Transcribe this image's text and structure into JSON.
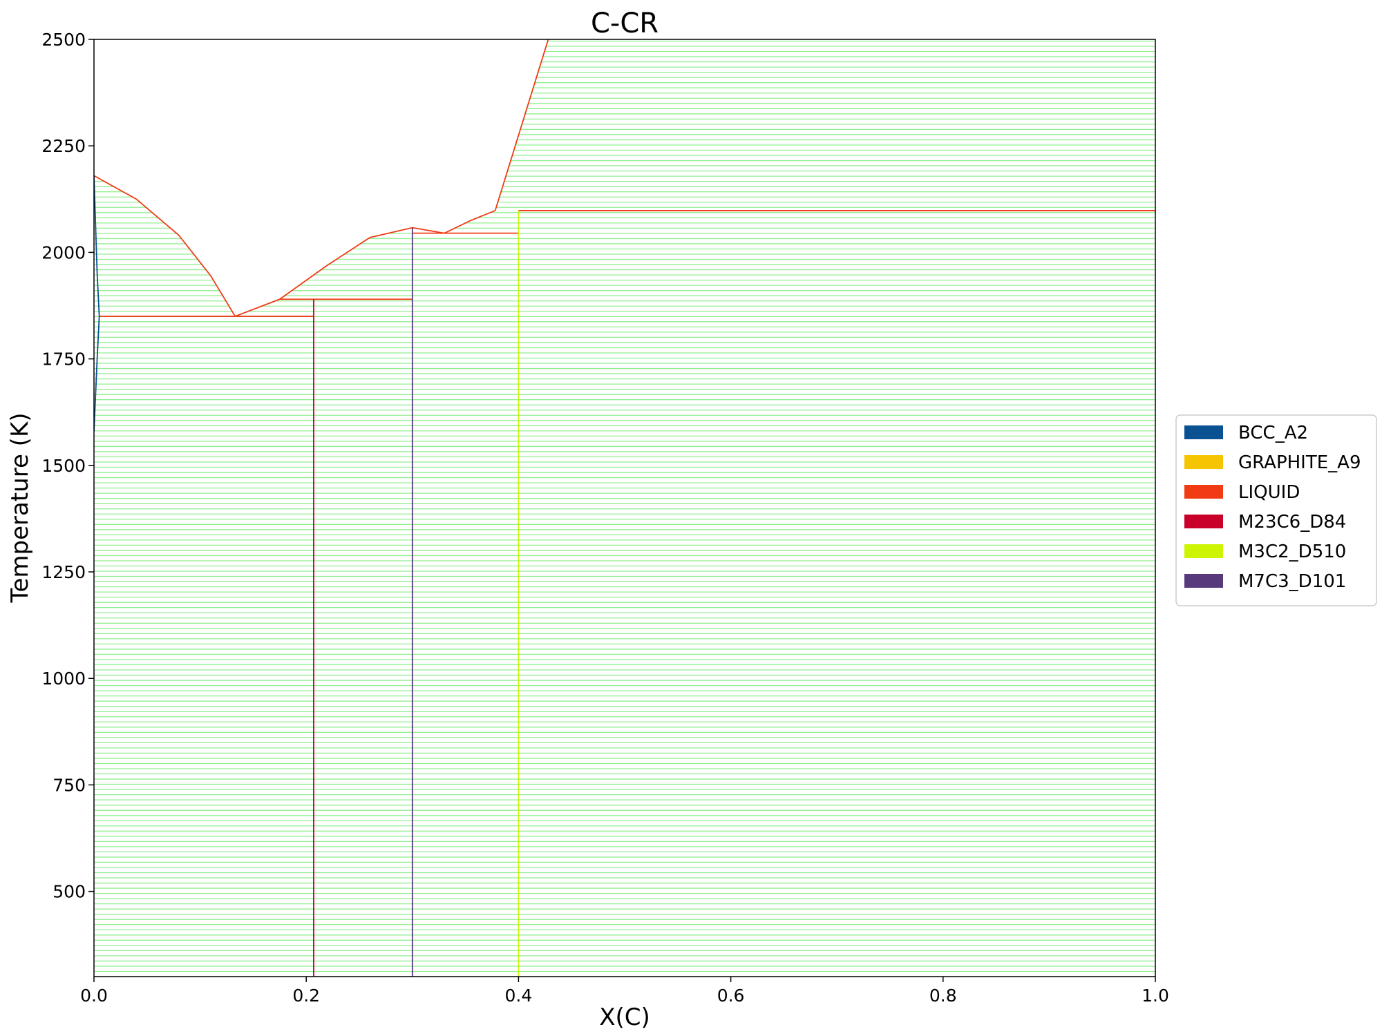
{
  "chart_data": {
    "type": "line",
    "title": "C-CR",
    "xlabel": "X(C)",
    "ylabel": "Temperature (K)",
    "xlim": [
      0.0,
      1.0
    ],
    "ylim": [
      300,
      2500
    ],
    "xticks": [
      0.0,
      0.2,
      0.4,
      0.6,
      0.8,
      1.0
    ],
    "xtick_labels": [
      "0.0",
      "0.2",
      "0.4",
      "0.6",
      "0.8",
      "1.0"
    ],
    "yticks": [
      500,
      750,
      1000,
      1250,
      1500,
      1750,
      2000,
      2250,
      2500
    ],
    "ytick_labels": [
      "500",
      "750",
      "1000",
      "1250",
      "1500",
      "1750",
      "2000",
      "2250",
      "2500"
    ],
    "grid": false,
    "legend_placement": "outside-right",
    "tieline_color": "#90ee90",
    "two_phase_regions": [
      {
        "y_min": 300,
        "y_max": 2500,
        "left": [
          [
            0.0,
            2500
          ],
          [
            0.0,
            300
          ]
        ],
        "right": [
          [
            1.0,
            2500
          ],
          [
            1.0,
            300
          ]
        ],
        "skip_above": true
      }
    ],
    "legend": [
      {
        "name": "BCC_A2",
        "color": "#0a5191"
      },
      {
        "name": "GRAPHITE_A9",
        "color": "#f5c504"
      },
      {
        "name": "LIQUID",
        "color": "#f03b14"
      },
      {
        "name": "M23C6_D84",
        "color": "#c8002a"
      },
      {
        "name": "M3C2_D510",
        "color": "#cdf503"
      },
      {
        "name": "M7C3_D101",
        "color": "#583a7c"
      }
    ],
    "series": [
      {
        "name": "LIQUID",
        "color": "#f03b14",
        "points": [
          [
            0.0,
            2180
          ],
          [
            0.04,
            2125
          ],
          [
            0.08,
            2040
          ],
          [
            0.11,
            1945
          ],
          [
            0.133,
            1850
          ]
        ]
      },
      {
        "name": "LIQUID",
        "color": "#f03b14",
        "points": [
          [
            0.133,
            1850
          ],
          [
            0.175,
            1890
          ]
        ]
      },
      {
        "name": "LIQUID",
        "color": "#f03b14",
        "points": [
          [
            0.175,
            1890
          ],
          [
            0.22,
            1970
          ],
          [
            0.26,
            2035
          ],
          [
            0.3,
            2058
          ],
          [
            0.33,
            2045
          ]
        ]
      },
      {
        "name": "LIQUID",
        "color": "#f03b14",
        "points": [
          [
            0.33,
            2045
          ],
          [
            0.355,
            2075
          ],
          [
            0.378,
            2098
          ]
        ]
      },
      {
        "name": "LIQUID",
        "color": "#f03b14",
        "points": [
          [
            0.378,
            2098
          ],
          [
            0.428,
            2500
          ]
        ]
      },
      {
        "name": "LIQUID",
        "color": "#f03b14",
        "points": [
          [
            0.005,
            1850
          ],
          [
            0.207,
            1850
          ]
        ]
      },
      {
        "name": "LIQUID",
        "color": "#f03b14",
        "points": [
          [
            0.175,
            1890
          ],
          [
            0.3,
            1890
          ]
        ]
      },
      {
        "name": "LIQUID",
        "color": "#f03b14",
        "points": [
          [
            0.3,
            2045
          ],
          [
            0.4,
            2045
          ]
        ]
      },
      {
        "name": "LIQUID",
        "color": "#f03b14",
        "points": [
          [
            0.4,
            2098
          ],
          [
            1.0,
            2098
          ]
        ]
      },
      {
        "name": "M23C6_D84",
        "color": "#c8002a",
        "points": [
          [
            0.207,
            300
          ],
          [
            0.207,
            1890
          ]
        ]
      },
      {
        "name": "M7C3_D101",
        "color": "#583a7c",
        "points": [
          [
            0.3,
            300
          ],
          [
            0.3,
            2058
          ]
        ]
      },
      {
        "name": "M3C2_D510",
        "color": "#cdf503",
        "points": [
          [
            0.4,
            300
          ],
          [
            0.4,
            2098
          ]
        ]
      },
      {
        "name": "BCC_A2",
        "color": "#0a5191",
        "points": [
          [
            0.0,
            2180
          ],
          [
            0.003,
            1950
          ],
          [
            0.005,
            1850
          ],
          [
            0.003,
            1750
          ],
          [
            0.0,
            1580
          ]
        ]
      }
    ]
  }
}
